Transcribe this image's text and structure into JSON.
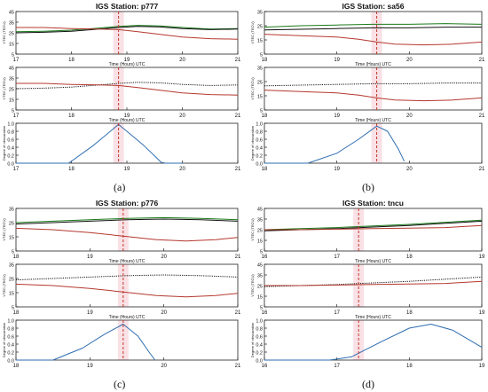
{
  "panel_labels": [
    "(a)",
    "(b)",
    "(c)",
    "(d)"
  ],
  "common": {
    "vtec_ylabel": "VTEC (TECU)",
    "dod_ylabel": "Degree of obscuration",
    "xlabel": "Time (Hours) UTC",
    "colors": {
      "green": "#1a7a1a",
      "black": "#111111",
      "red": "#b4382e",
      "blue": "#2e6db0",
      "eclipse_line": "#c0392b",
      "eclipse_shade": "#f7d4dc"
    }
  },
  "chart_data": [
    {
      "type": "line",
      "title": "IGS Station: p777",
      "xlabel": "Time (Hours) UTC",
      "xlim": [
        17,
        21
      ],
      "xticks": [
        17,
        18,
        19,
        20,
        21
      ],
      "eclipse_time": 18.85,
      "vtec_ylim": [
        5,
        45
      ],
      "vtec_yticks": [
        5,
        15,
        25,
        35,
        45
      ],
      "series": [
        {
          "color": "green",
          "x": [
            17,
            17.5,
            18,
            18.5,
            18.85,
            19.2,
            19.6,
            20,
            20.5,
            21
          ],
          "values": [
            26,
            26.5,
            27.5,
            29.5,
            31,
            32,
            31.5,
            30,
            28.5,
            29
          ]
        },
        {
          "color": "black",
          "x": [
            17,
            17.5,
            18,
            18.5,
            18.85,
            19.2,
            19.6,
            20,
            20.5,
            21
          ],
          "values": [
            25,
            25.5,
            26.5,
            28.5,
            30,
            31,
            30.5,
            29,
            28,
            28.5
          ]
        },
        {
          "color": "red",
          "x": [
            17,
            17.5,
            18,
            18.5,
            18.85,
            19.2,
            19.6,
            20,
            20.5,
            21
          ],
          "values": [
            30,
            30,
            29,
            28.5,
            28,
            26,
            23.5,
            21,
            19.5,
            19
          ]
        }
      ],
      "dod": {
        "x": [
          17,
          17.95,
          18.4,
          18.85,
          19.3,
          19.62,
          19.7,
          20.0
        ],
        "values": [
          0,
          0,
          0.45,
          0.97,
          0.45,
          0.02,
          0,
          0
        ]
      }
    },
    {
      "type": "line",
      "title": "IGS Station: sa56",
      "xlabel": "Time (Hours) UTC",
      "xlim": [
        18,
        21
      ],
      "xticks": [
        18,
        19,
        20,
        21
      ],
      "eclipse_time": 19.55,
      "vtec_ylim": [
        5,
        35
      ],
      "vtec_yticks": [
        5,
        15,
        25,
        35
      ],
      "series": [
        {
          "color": "green",
          "x": [
            18,
            18.5,
            19,
            19.5,
            20,
            20.5,
            21
          ],
          "values": [
            24,
            25,
            25.5,
            26,
            26,
            26.5,
            26
          ]
        },
        {
          "color": "black",
          "x": [
            18,
            18.5,
            19,
            19.5,
            20,
            20.5,
            21
          ],
          "values": [
            22,
            22.5,
            23,
            23.5,
            23.5,
            24,
            24
          ]
        },
        {
          "color": "red",
          "x": [
            18,
            18.5,
            19,
            19.3,
            19.55,
            19.8,
            20.2,
            20.6,
            21
          ],
          "values": [
            19,
            18,
            17,
            15.5,
            13.5,
            12,
            11.5,
            12,
            13.5
          ]
        }
      ],
      "dod": {
        "x": [
          18,
          18.6,
          19.0,
          19.3,
          19.55,
          19.7,
          19.85,
          19.93
        ],
        "values": [
          0,
          0,
          0.25,
          0.6,
          0.93,
          0.8,
          0.35,
          0.05
        ]
      }
    },
    {
      "type": "line",
      "title": "IGS Station: p776",
      "xlabel": "Time (Hours) UTC",
      "xlim": [
        18,
        21
      ],
      "xticks": [
        18,
        19,
        20,
        21
      ],
      "eclipse_time": 19.45,
      "vtec_ylim": [
        5,
        35
      ],
      "vtec_yticks": [
        5,
        15,
        25,
        35
      ],
      "series": [
        {
          "color": "green",
          "x": [
            18,
            18.5,
            19,
            19.5,
            20,
            20.5,
            21
          ],
          "values": [
            25,
            26,
            27,
            28,
            28.5,
            28,
            27
          ]
        },
        {
          "color": "black",
          "x": [
            18,
            18.5,
            19,
            19.5,
            20,
            20.5,
            21
          ],
          "values": [
            24,
            25,
            26,
            27,
            27.5,
            27,
            26
          ]
        },
        {
          "color": "red",
          "x": [
            18,
            18.5,
            19,
            19.45,
            19.9,
            20.3,
            20.7,
            21
          ],
          "values": [
            21,
            20,
            18,
            15.5,
            13,
            12,
            13,
            14.5
          ]
        }
      ],
      "dod": {
        "x": [
          18,
          18.5,
          18.9,
          19.2,
          19.45,
          19.65,
          19.8,
          19.88
        ],
        "values": [
          0,
          0,
          0.3,
          0.65,
          0.9,
          0.6,
          0.2,
          0
        ]
      }
    },
    {
      "type": "line",
      "title": "IGS Station: tncu",
      "xlabel": "Time (Hours) UTC",
      "xlim": [
        16,
        19
      ],
      "xticks": [
        16,
        17,
        18,
        19
      ],
      "eclipse_time": 17.3,
      "vtec_ylim": [
        5,
        45
      ],
      "vtec_yticks": [
        5,
        15,
        25,
        35,
        45
      ],
      "series": [
        {
          "color": "green",
          "x": [
            16,
            16.5,
            17,
            17.5,
            18,
            18.5,
            19
          ],
          "values": [
            25,
            26,
            27,
            28.5,
            30,
            32,
            34
          ]
        },
        {
          "color": "black",
          "x": [
            16,
            16.5,
            17,
            17.5,
            18,
            18.5,
            19
          ],
          "values": [
            24,
            25,
            26,
            27.5,
            29,
            31,
            33
          ]
        },
        {
          "color": "red",
          "x": [
            16,
            16.5,
            17,
            17.5,
            18,
            18.5,
            19
          ],
          "values": [
            25,
            25,
            25.5,
            26,
            26.5,
            27,
            29
          ]
        }
      ],
      "dod": {
        "x": [
          16,
          16.9,
          17.2,
          17.6,
          18.0,
          18.3,
          18.6,
          19
        ],
        "values": [
          0,
          0,
          0.08,
          0.45,
          0.8,
          0.9,
          0.75,
          0.32
        ]
      }
    }
  ]
}
